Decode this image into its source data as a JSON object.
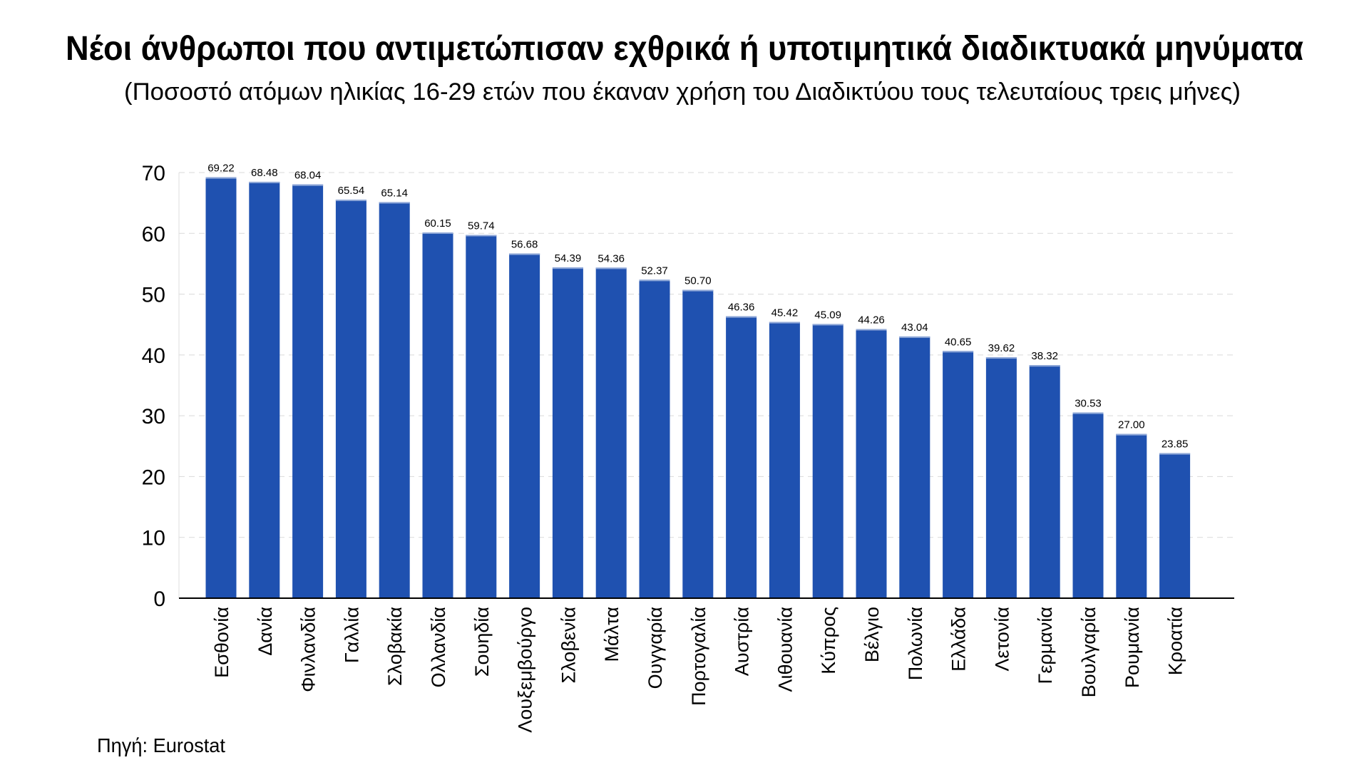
{
  "chart_data": {
    "type": "bar",
    "title": "Νέοι άνθρωποι που αντιμετώπισαν εχθρικά ή υποτιμητικά διαδικτυακά μηνύματα",
    "subtitle": "(Ποσοστό ατόμων ηλικίας 16-29 ετών που έκαναν χρήση του Διαδικτύου τους τελευταίους τρεις μήνες)",
    "source": "Πηγή: Eurostat",
    "xlabel": "",
    "ylabel": "",
    "ylim": [
      0,
      70
    ],
    "yticks": [
      "0",
      "10",
      "20",
      "30",
      "40",
      "50",
      "60",
      "70"
    ],
    "grid": true,
    "bar_color": "#1f51b0",
    "categories": [
      "Εσθονία",
      "Δανία",
      "Φινλανδία",
      "Γαλλία",
      "Σλοβακία",
      "Ολλανδία",
      "Σουηδία",
      "Λουξεμβούργο",
      "Σλοβενία",
      "Μάλτα",
      "Ουγγαρία",
      "Πορτογαλία",
      "Αυστρία",
      "Λιθουανία",
      "Κύπρος",
      "Βέλγιο",
      "Πολωνία",
      "Ελλάδα",
      "Λετονία",
      "Γερμανία",
      "Βουλγαρία",
      "Ρουμανία",
      "Κροατία"
    ],
    "values": [
      69.22,
      68.48,
      68.04,
      65.54,
      65.14,
      60.15,
      59.74,
      56.68,
      54.39,
      54.36,
      52.37,
      50.7,
      46.36,
      45.42,
      45.09,
      44.26,
      43.04,
      40.65,
      39.62,
      38.32,
      30.53,
      27.0,
      23.85
    ],
    "data_labels": [
      "69.22",
      "68.48",
      "68.04",
      "65.54",
      "65.14",
      "60.15",
      "59.74",
      "56.68",
      "54.39",
      "54.36",
      "52.37",
      "50.70",
      "46.36",
      "45.42",
      "45.09",
      "44.26",
      "43.04",
      "40.65",
      "39.62",
      "38.32",
      "30.53",
      "27.00",
      "23.85"
    ]
  }
}
